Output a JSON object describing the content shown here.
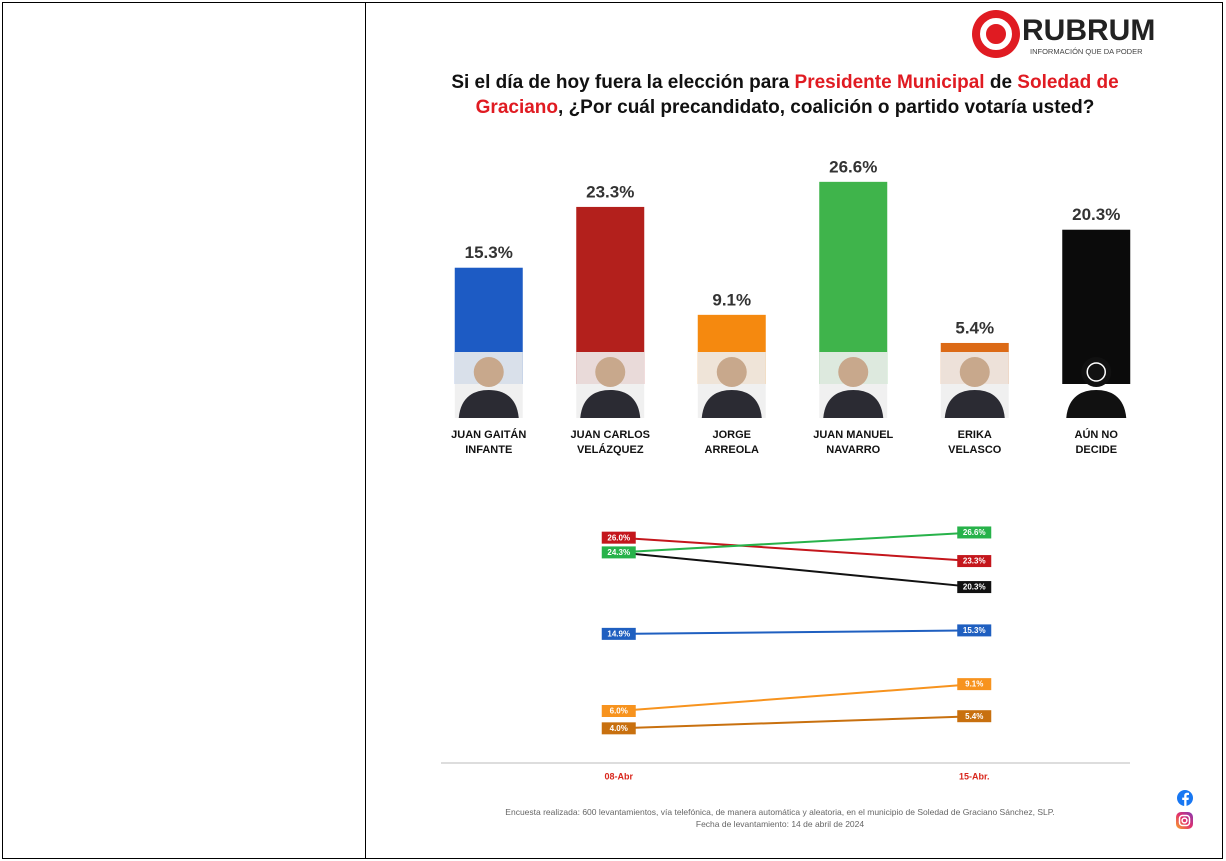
{
  "logo": {
    "name": "RUBRUM",
    "tagline": "INFORMACIÓN QUE DA PODER"
  },
  "chart_data": [
    {
      "type": "bar",
      "title": [
        {
          "text": "Si el día de hoy fuera la elección para ",
          "color": "#111111"
        },
        {
          "text": "Presidente Municipal",
          "color": "#e01b22"
        },
        {
          "text": " de ",
          "color": "#111111"
        },
        {
          "text": "Soledad de Graciano",
          "color": "#e01b22"
        },
        {
          "text": ", ¿Por cuál precandidato, coalición o partido votaría usted?",
          "color": "#111111"
        }
      ],
      "categories": [
        "JUAN GAITÁN\nINFANTE",
        "JUAN CARLOS\nVELÁZQUEZ",
        "JORGE\nARREOLA",
        "JUAN MANUEL\nNAVARRO",
        "ERIKA\nVELASCO",
        "AÚN NO\nDECIDE"
      ],
      "values": [
        15.3,
        23.3,
        9.1,
        26.6,
        5.4,
        20.3
      ],
      "value_labels": [
        "15.3%",
        "23.3%",
        "9.1%",
        "26.6%",
        "5.4%",
        "20.3%"
      ],
      "colors": [
        "#1d5bc4",
        "#b3201c",
        "#f5890f",
        "#3fb44b",
        "#dc6a16",
        "#0b0b0b"
      ],
      "ylim": [
        0,
        30
      ]
    },
    {
      "type": "line",
      "x": [
        "08-Abr",
        "15-Abr."
      ],
      "series": [
        {
          "color": "#c4161c",
          "values": [
            26.0,
            23.3
          ],
          "value_labels": [
            "26.0%",
            "23.3%"
          ]
        },
        {
          "color": "#27b24a",
          "values": [
            24.3,
            26.6
          ],
          "value_labels": [
            "24.3%",
            "26.6%"
          ]
        },
        {
          "color": "#111111",
          "values": [
            24.3,
            20.3
          ],
          "value_labels": [
            null,
            "20.3%"
          ]
        },
        {
          "color": "#1f5fc0",
          "values": [
            14.9,
            15.3
          ],
          "value_labels": [
            "14.9%",
            "15.3%"
          ]
        },
        {
          "color": "#f7931e",
          "values": [
            6.0,
            9.1
          ],
          "value_labels": [
            "6.0%",
            "9.1%"
          ]
        },
        {
          "color": "#c8700f",
          "values": [
            4.0,
            5.4
          ],
          "value_labels": [
            "4.0%",
            "5.4%"
          ]
        }
      ],
      "ylim": [
        0,
        30
      ]
    }
  ],
  "footnote": [
    "Encuesta realizada: 600 levantamientos, vía telefónica, de manera automática y aleatoria, en el municipio de Soledad de Graciano Sánchez, SLP.",
    "Fecha de levantamiento: 14 de abril de 2024"
  ]
}
